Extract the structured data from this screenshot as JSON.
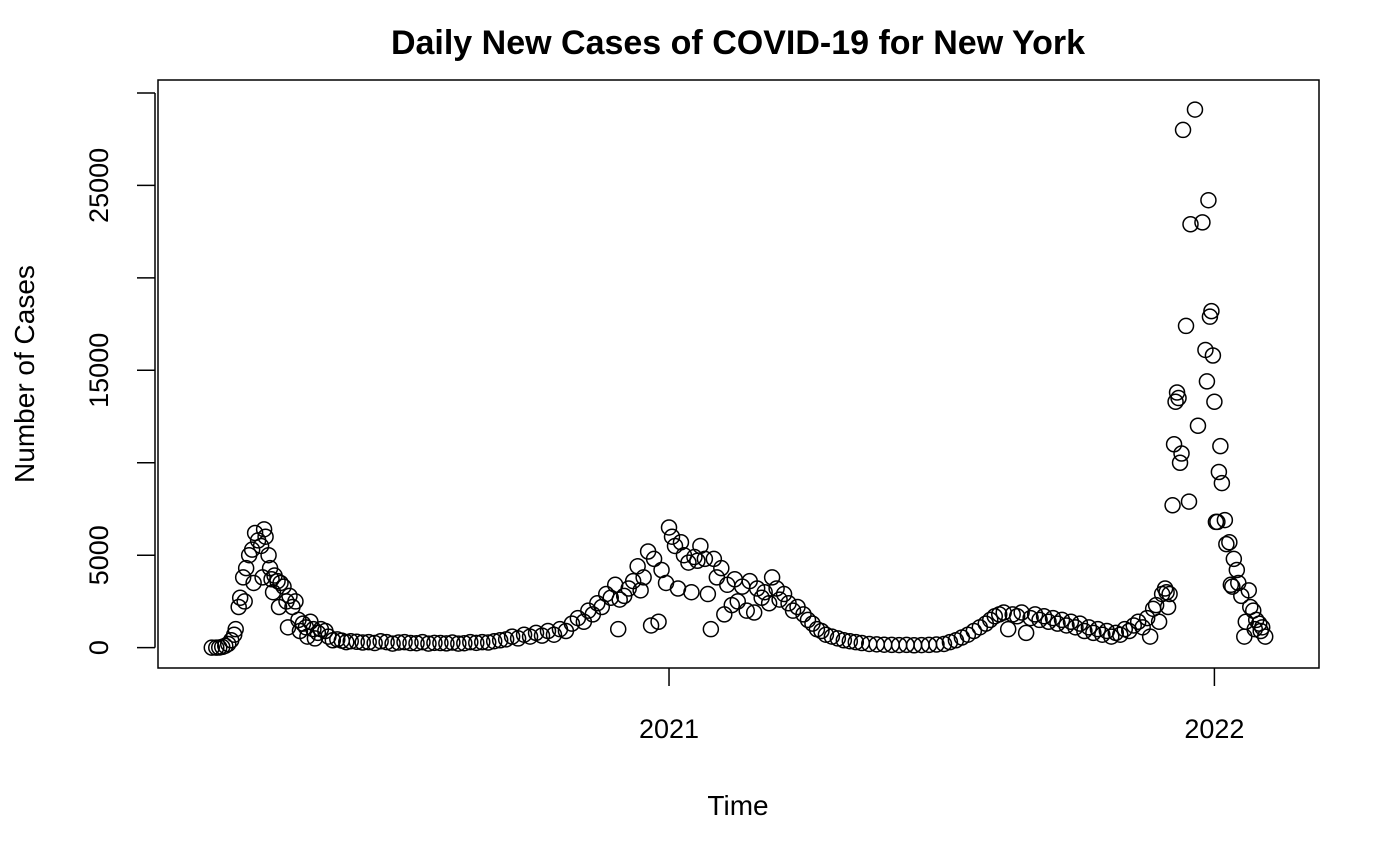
{
  "chart_data": {
    "type": "scatter",
    "title": "Daily New Cases of COVID-19 for New York",
    "xlabel": "Time",
    "ylabel": "Number of Cases",
    "xlim": [
      "2020-01-25",
      "2022-03-12"
    ],
    "ylim": [
      -1100,
      30700
    ],
    "x_ticks": [
      {
        "date": "2021-01-01",
        "label": "2021"
      },
      {
        "date": "2022-01-01",
        "label": "2022"
      }
    ],
    "y_ticks": [
      0,
      5000,
      10000,
      15000,
      20000,
      25000,
      30000
    ],
    "y_tick_labels": [
      "0",
      "5000",
      "",
      "15000",
      "",
      "25000",
      ""
    ],
    "grid": false,
    "legend": "none",
    "marker": "open-circle",
    "series": [
      {
        "points": [
          [
            "2020-03-01",
            0
          ],
          [
            "2020-03-04",
            0
          ],
          [
            "2020-03-06",
            10
          ],
          [
            "2020-03-08",
            40
          ],
          [
            "2020-03-10",
            100
          ],
          [
            "2020-03-12",
            200
          ],
          [
            "2020-03-14",
            400
          ],
          [
            "2020-03-16",
            700
          ],
          [
            "2020-03-17",
            1000
          ],
          [
            "2020-03-19",
            2200
          ],
          [
            "2020-03-20",
            2700
          ],
          [
            "2020-03-22",
            3800
          ],
          [
            "2020-03-23",
            2500
          ],
          [
            "2020-03-24",
            4300
          ],
          [
            "2020-03-26",
            5000
          ],
          [
            "2020-03-28",
            5300
          ],
          [
            "2020-03-29",
            3500
          ],
          [
            "2020-03-30",
            6200
          ],
          [
            "2020-04-01",
            5800
          ],
          [
            "2020-04-03",
            5500
          ],
          [
            "2020-04-04",
            3800
          ],
          [
            "2020-04-05",
            6400
          ],
          [
            "2020-04-06",
            6000
          ],
          [
            "2020-04-08",
            5000
          ],
          [
            "2020-04-09",
            4300
          ],
          [
            "2020-04-10",
            3700
          ],
          [
            "2020-04-11",
            3000
          ],
          [
            "2020-04-12",
            3900
          ],
          [
            "2020-04-14",
            3600
          ],
          [
            "2020-04-15",
            2200
          ],
          [
            "2020-04-16",
            3500
          ],
          [
            "2020-04-18",
            3300
          ],
          [
            "2020-04-20",
            2500
          ],
          [
            "2020-04-21",
            1100
          ],
          [
            "2020-04-22",
            2800
          ],
          [
            "2020-04-24",
            2200
          ],
          [
            "2020-04-26",
            2500
          ],
          [
            "2020-04-28",
            1500
          ],
          [
            "2020-04-29",
            900
          ],
          [
            "2020-05-01",
            1300
          ],
          [
            "2020-05-03",
            1100
          ],
          [
            "2020-05-04",
            600
          ],
          [
            "2020-05-06",
            1400
          ],
          [
            "2020-05-08",
            1000
          ],
          [
            "2020-05-09",
            500
          ],
          [
            "2020-05-11",
            800
          ],
          [
            "2020-05-13",
            1000
          ],
          [
            "2020-05-16",
            900
          ],
          [
            "2020-05-18",
            600
          ],
          [
            "2020-05-21",
            400
          ],
          [
            "2020-05-24",
            450
          ],
          [
            "2020-05-27",
            380
          ],
          [
            "2020-05-30",
            300
          ],
          [
            "2020-06-02",
            350
          ],
          [
            "2020-06-06",
            320
          ],
          [
            "2020-06-10",
            280
          ],
          [
            "2020-06-14",
            300
          ],
          [
            "2020-06-18",
            250
          ],
          [
            "2020-06-22",
            350
          ],
          [
            "2020-06-26",
            300
          ],
          [
            "2020-06-30",
            220
          ],
          [
            "2020-07-04",
            280
          ],
          [
            "2020-07-08",
            300
          ],
          [
            "2020-07-12",
            250
          ],
          [
            "2020-07-16",
            240
          ],
          [
            "2020-07-20",
            300
          ],
          [
            "2020-07-24",
            220
          ],
          [
            "2020-07-28",
            260
          ],
          [
            "2020-08-01",
            250
          ],
          [
            "2020-08-05",
            230
          ],
          [
            "2020-08-09",
            280
          ],
          [
            "2020-08-13",
            220
          ],
          [
            "2020-08-17",
            240
          ],
          [
            "2020-08-21",
            300
          ],
          [
            "2020-08-25",
            260
          ],
          [
            "2020-08-29",
            300
          ],
          [
            "2020-09-02",
            280
          ],
          [
            "2020-09-06",
            350
          ],
          [
            "2020-09-10",
            400
          ],
          [
            "2020-09-14",
            450
          ],
          [
            "2020-09-18",
            600
          ],
          [
            "2020-09-22",
            500
          ],
          [
            "2020-09-26",
            700
          ],
          [
            "2020-09-30",
            600
          ],
          [
            "2020-10-04",
            800
          ],
          [
            "2020-10-08",
            650
          ],
          [
            "2020-10-12",
            900
          ],
          [
            "2020-10-16",
            700
          ],
          [
            "2020-10-20",
            1000
          ],
          [
            "2020-10-24",
            900
          ],
          [
            "2020-10-28",
            1300
          ],
          [
            "2020-11-01",
            1600
          ],
          [
            "2020-11-05",
            1400
          ],
          [
            "2020-11-08",
            2000
          ],
          [
            "2020-11-11",
            1800
          ],
          [
            "2020-11-14",
            2400
          ],
          [
            "2020-11-17",
            2200
          ],
          [
            "2020-11-20",
            2900
          ],
          [
            "2020-11-23",
            2700
          ],
          [
            "2020-11-26",
            3400
          ],
          [
            "2020-11-28",
            1000
          ],
          [
            "2020-11-29",
            2600
          ],
          [
            "2020-12-02",
            2800
          ],
          [
            "2020-12-05",
            3200
          ],
          [
            "2020-12-08",
            3600
          ],
          [
            "2020-12-11",
            4400
          ],
          [
            "2020-12-13",
            3100
          ],
          [
            "2020-12-15",
            3800
          ],
          [
            "2020-12-18",
            5200
          ],
          [
            "2020-12-20",
            1200
          ],
          [
            "2020-12-22",
            4800
          ],
          [
            "2020-12-25",
            1400
          ],
          [
            "2020-12-27",
            4200
          ],
          [
            "2020-12-30",
            3500
          ],
          [
            "2021-01-01",
            6500
          ],
          [
            "2021-01-03",
            6000
          ],
          [
            "2021-01-05",
            5500
          ],
          [
            "2021-01-07",
            3200
          ],
          [
            "2021-01-09",
            5700
          ],
          [
            "2021-01-11",
            5000
          ],
          [
            "2021-01-14",
            4600
          ],
          [
            "2021-01-16",
            3000
          ],
          [
            "2021-01-18",
            4900
          ],
          [
            "2021-01-20",
            4700
          ],
          [
            "2021-01-22",
            5500
          ],
          [
            "2021-01-25",
            4800
          ],
          [
            "2021-01-27",
            2900
          ],
          [
            "2021-01-29",
            1000
          ],
          [
            "2021-01-31",
            4800
          ],
          [
            "2021-02-02",
            3800
          ],
          [
            "2021-02-05",
            4300
          ],
          [
            "2021-02-07",
            1800
          ],
          [
            "2021-02-09",
            3400
          ],
          [
            "2021-02-12",
            2300
          ],
          [
            "2021-02-14",
            3700
          ],
          [
            "2021-02-16",
            2500
          ],
          [
            "2021-02-19",
            3300
          ],
          [
            "2021-02-22",
            2000
          ],
          [
            "2021-02-24",
            3600
          ],
          [
            "2021-02-27",
            1900
          ],
          [
            "2021-03-01",
            3200
          ],
          [
            "2021-03-04",
            2700
          ],
          [
            "2021-03-06",
            3000
          ],
          [
            "2021-03-09",
            2400
          ],
          [
            "2021-03-11",
            3800
          ],
          [
            "2021-03-14",
            3200
          ],
          [
            "2021-03-16",
            2600
          ],
          [
            "2021-03-19",
            2900
          ],
          [
            "2021-03-22",
            2400
          ],
          [
            "2021-03-25",
            2000
          ],
          [
            "2021-03-28",
            2200
          ],
          [
            "2021-04-01",
            1800
          ],
          [
            "2021-04-04",
            1500
          ],
          [
            "2021-04-07",
            1300
          ],
          [
            "2021-04-10",
            1000
          ],
          [
            "2021-04-13",
            900
          ],
          [
            "2021-04-16",
            700
          ],
          [
            "2021-04-20",
            600
          ],
          [
            "2021-04-24",
            500
          ],
          [
            "2021-04-28",
            400
          ],
          [
            "2021-05-02",
            350
          ],
          [
            "2021-05-06",
            300
          ],
          [
            "2021-05-10",
            250
          ],
          [
            "2021-05-15",
            200
          ],
          [
            "2021-05-20",
            180
          ],
          [
            "2021-05-25",
            160
          ],
          [
            "2021-05-30",
            150
          ],
          [
            "2021-06-04",
            140
          ],
          [
            "2021-06-09",
            150
          ],
          [
            "2021-06-14",
            130
          ],
          [
            "2021-06-19",
            140
          ],
          [
            "2021-06-24",
            150
          ],
          [
            "2021-06-29",
            170
          ],
          [
            "2021-07-04",
            200
          ],
          [
            "2021-07-08",
            300
          ],
          [
            "2021-07-12",
            400
          ],
          [
            "2021-07-16",
            550
          ],
          [
            "2021-07-20",
            700
          ],
          [
            "2021-07-24",
            900
          ],
          [
            "2021-07-28",
            1100
          ],
          [
            "2021-08-01",
            1300
          ],
          [
            "2021-08-04",
            1500
          ],
          [
            "2021-08-07",
            1700
          ],
          [
            "2021-08-10",
            1800
          ],
          [
            "2021-08-13",
            1900
          ],
          [
            "2021-08-16",
            1000
          ],
          [
            "2021-08-19",
            1800
          ],
          [
            "2021-08-22",
            1700
          ],
          [
            "2021-08-25",
            1900
          ],
          [
            "2021-08-28",
            800
          ],
          [
            "2021-08-31",
            1600
          ],
          [
            "2021-09-03",
            1800
          ],
          [
            "2021-09-06",
            1500
          ],
          [
            "2021-09-09",
            1700
          ],
          [
            "2021-09-12",
            1400
          ],
          [
            "2021-09-15",
            1600
          ],
          [
            "2021-09-18",
            1300
          ],
          [
            "2021-09-21",
            1500
          ],
          [
            "2021-09-24",
            1200
          ],
          [
            "2021-09-27",
            1400
          ],
          [
            "2021-09-30",
            1100
          ],
          [
            "2021-10-03",
            1300
          ],
          [
            "2021-10-06",
            900
          ],
          [
            "2021-10-09",
            1100
          ],
          [
            "2021-10-12",
            800
          ],
          [
            "2021-10-15",
            1000
          ],
          [
            "2021-10-18",
            700
          ],
          [
            "2021-10-21",
            900
          ],
          [
            "2021-10-24",
            600
          ],
          [
            "2021-10-27",
            800
          ],
          [
            "2021-10-30",
            700
          ],
          [
            "2021-11-02",
            1000
          ],
          [
            "2021-11-05",
            900
          ],
          [
            "2021-11-08",
            1200
          ],
          [
            "2021-11-11",
            1400
          ],
          [
            "2021-11-14",
            1100
          ],
          [
            "2021-11-17",
            1600
          ],
          [
            "2021-11-19",
            600
          ],
          [
            "2021-11-21",
            2100
          ],
          [
            "2021-11-23",
            2300
          ],
          [
            "2021-11-25",
            1400
          ],
          [
            "2021-11-27",
            2900
          ],
          [
            "2021-11-29",
            3200
          ],
          [
            "2021-11-30",
            3000
          ],
          [
            "2021-12-01",
            2200
          ],
          [
            "2021-12-02",
            2900
          ],
          [
            "2021-12-04",
            7700
          ],
          [
            "2021-12-05",
            11000
          ],
          [
            "2021-12-06",
            13300
          ],
          [
            "2021-12-07",
            13800
          ],
          [
            "2021-12-08",
            13500
          ],
          [
            "2021-12-09",
            10000
          ],
          [
            "2021-12-10",
            10500
          ],
          [
            "2021-12-11",
            28000
          ],
          [
            "2021-12-13",
            17400
          ],
          [
            "2021-12-15",
            7900
          ],
          [
            "2021-12-16",
            22900
          ],
          [
            "2021-12-19",
            29100
          ],
          [
            "2021-12-21",
            12000
          ],
          [
            "2021-12-24",
            23000
          ],
          [
            "2021-12-26",
            16100
          ],
          [
            "2021-12-27",
            14400
          ],
          [
            "2021-12-28",
            24200
          ],
          [
            "2021-12-29",
            17900
          ],
          [
            "2021-12-30",
            18200
          ],
          [
            "2021-12-31",
            15800
          ],
          [
            "2022-01-01",
            13300
          ],
          [
            "2022-01-02",
            6800
          ],
          [
            "2022-01-03",
            6800
          ],
          [
            "2022-01-04",
            9500
          ],
          [
            "2022-01-05",
            10900
          ],
          [
            "2022-01-06",
            8900
          ],
          [
            "2022-01-08",
            6900
          ],
          [
            "2022-01-09",
            5600
          ],
          [
            "2022-01-11",
            5700
          ],
          [
            "2022-01-12",
            3400
          ],
          [
            "2022-01-13",
            3300
          ],
          [
            "2022-01-14",
            4800
          ],
          [
            "2022-01-16",
            4200
          ],
          [
            "2022-01-17",
            3500
          ],
          [
            "2022-01-19",
            2800
          ],
          [
            "2022-01-21",
            600
          ],
          [
            "2022-01-22",
            1400
          ],
          [
            "2022-01-24",
            3100
          ],
          [
            "2022-01-25",
            2200
          ],
          [
            "2022-01-27",
            2000
          ],
          [
            "2022-01-28",
            1000
          ],
          [
            "2022-01-29",
            1500
          ],
          [
            "2022-01-31",
            1300
          ],
          [
            "2022-02-01",
            900
          ],
          [
            "2022-02-02",
            1100
          ],
          [
            "2022-02-04",
            600
          ]
        ]
      }
    ]
  }
}
